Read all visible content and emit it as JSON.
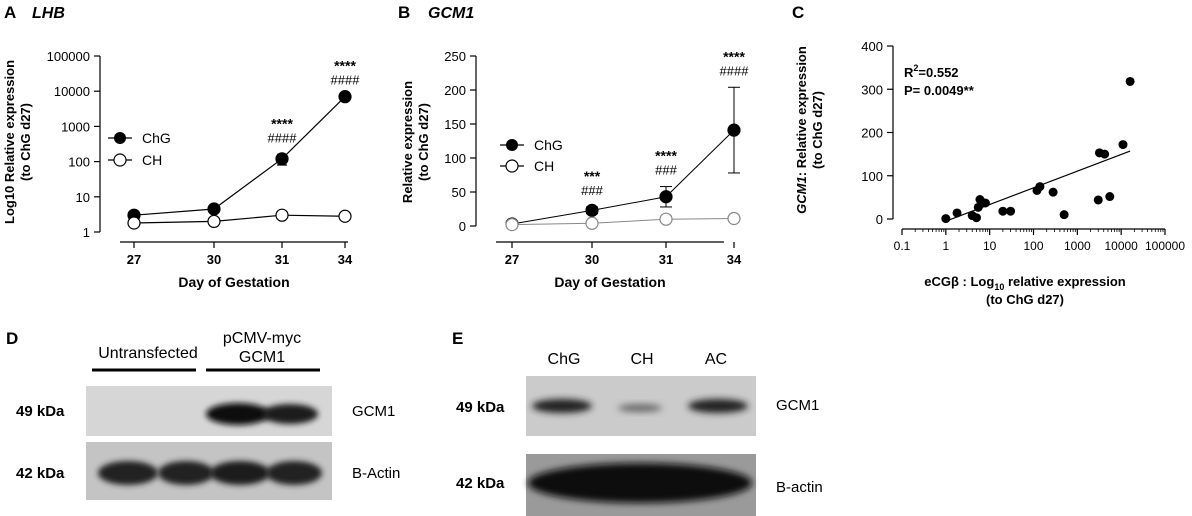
{
  "panels": {
    "A": {
      "letter": "A",
      "title": "LHB",
      "ylabel_line1": "Log10 Relative expression",
      "ylabel_line2": "(to ChG d27)",
      "xlabel": "Day of Gestation",
      "yticks": [
        "1",
        "10",
        "100",
        "1000",
        "10000",
        "100000"
      ],
      "xticks": [
        "27",
        "30",
        "31",
        "34"
      ],
      "legend": [
        "ChG",
        "CH"
      ],
      "annotations": [
        {
          "day": "31",
          "top": "****",
          "bottom": "####"
        },
        {
          "day": "34",
          "top": "****",
          "bottom": "####"
        }
      ]
    },
    "B": {
      "letter": "B",
      "title": "GCM1",
      "ylabel_line1": "Relative expression",
      "ylabel_line2": "(to ChG d27)",
      "xlabel": "Day of Gestation",
      "yticks": [
        "0",
        "50",
        "100",
        "150",
        "200",
        "250"
      ],
      "xticks": [
        "27",
        "30",
        "31",
        "34"
      ],
      "legend": [
        "ChG",
        "CH"
      ],
      "annotations": [
        {
          "day": "30",
          "top": "***",
          "bottom": "###"
        },
        {
          "day": "31",
          "top": "****",
          "bottom": "###"
        },
        {
          "day": "34",
          "top": "****",
          "bottom": "####"
        }
      ]
    },
    "C": {
      "letter": "C",
      "ylabel_italic": "GCM1",
      "ylabel_rest": ": Relative expression",
      "ylabel_line2": "(to ChG d27)",
      "xlabel_line1": "eCGβ : Log",
      "xlabel_sub": "10",
      "xlabel_line1_rest": " relative expression",
      "xlabel_line2": "(to ChG d27)",
      "yticks": [
        "0",
        "100",
        "200",
        "300",
        "400"
      ],
      "xticks": [
        "0.1",
        "1",
        "10",
        "100",
        "1000",
        "10000",
        "100000"
      ],
      "r2_label": "R",
      "r2_sup": "2",
      "r2_value": "=0.552",
      "p_label": "P= 0.0049**"
    },
    "D": {
      "letter": "D",
      "lane_group_1": "Untransfected",
      "lane_group_2_line1": "pCMV-myc",
      "lane_group_2_line2": "GCM1",
      "row1_kda": "49 kDa",
      "row1_protein": "GCM1",
      "row2_kda": "42 kDa",
      "row2_protein": "B-Actin"
    },
    "E": {
      "letter": "E",
      "lanes": [
        "ChG",
        "CH",
        "AC"
      ],
      "row1_kda": "49 kDa",
      "row1_protein": "GCM1",
      "row2_kda": "42 kDa",
      "row2_protein": "B-actin"
    }
  },
  "chart_data": [
    {
      "type": "line",
      "title": "LHB",
      "xlabel": "Day of Gestation",
      "ylabel": "Log10 Relative expression (to ChG d27)",
      "y_scale": "log",
      "ylim": [
        1,
        100000
      ],
      "categories": [
        "27",
        "30",
        "31",
        "34"
      ],
      "series": [
        {
          "name": "ChG",
          "values": [
            3,
            4.5,
            120,
            7000
          ],
          "err": [
            0,
            0,
            40,
            0
          ],
          "marker": "filled"
        },
        {
          "name": "CH",
          "values": [
            1.8,
            2,
            3,
            2.8
          ],
          "err": [
            0,
            0,
            0,
            0
          ],
          "marker": "open"
        }
      ],
      "legend": "left"
    },
    {
      "type": "line",
      "title": "GCM1",
      "xlabel": "Day of Gestation",
      "ylabel": "Relative expression (to ChG d27)",
      "ylim": [
        0,
        250
      ],
      "categories": [
        "27",
        "30",
        "31",
        "34"
      ],
      "series": [
        {
          "name": "ChG",
          "values": [
            3,
            23,
            43,
            141
          ],
          "err": [
            0,
            5,
            15,
            63
          ],
          "marker": "filled"
        },
        {
          "name": "CH",
          "values": [
            2,
            4,
            10,
            11
          ],
          "err": [
            0,
            0,
            0,
            0
          ],
          "marker": "open"
        }
      ],
      "legend": "left"
    },
    {
      "type": "scatter",
      "x_scale": "log",
      "xlim": [
        0.1,
        100000
      ],
      "ylim": [
        0,
        400
      ],
      "points": [
        [
          1,
          1
        ],
        [
          1.8,
          14
        ],
        [
          4,
          8
        ],
        [
          5,
          3
        ],
        [
          5.5,
          27
        ],
        [
          6,
          45
        ],
        [
          8,
          37
        ],
        [
          20,
          18
        ],
        [
          30,
          18
        ],
        [
          120,
          66
        ],
        [
          140,
          75
        ],
        [
          280,
          62
        ],
        [
          500,
          10
        ],
        [
          3000,
          44
        ],
        [
          3200,
          153
        ],
        [
          4200,
          150
        ],
        [
          5500,
          52
        ],
        [
          11000,
          172
        ],
        [
          16000,
          318
        ]
      ],
      "fit": {
        "x": [
          1,
          16000
        ],
        "y": [
          -5,
          157
        ]
      },
      "grid": false
    }
  ]
}
